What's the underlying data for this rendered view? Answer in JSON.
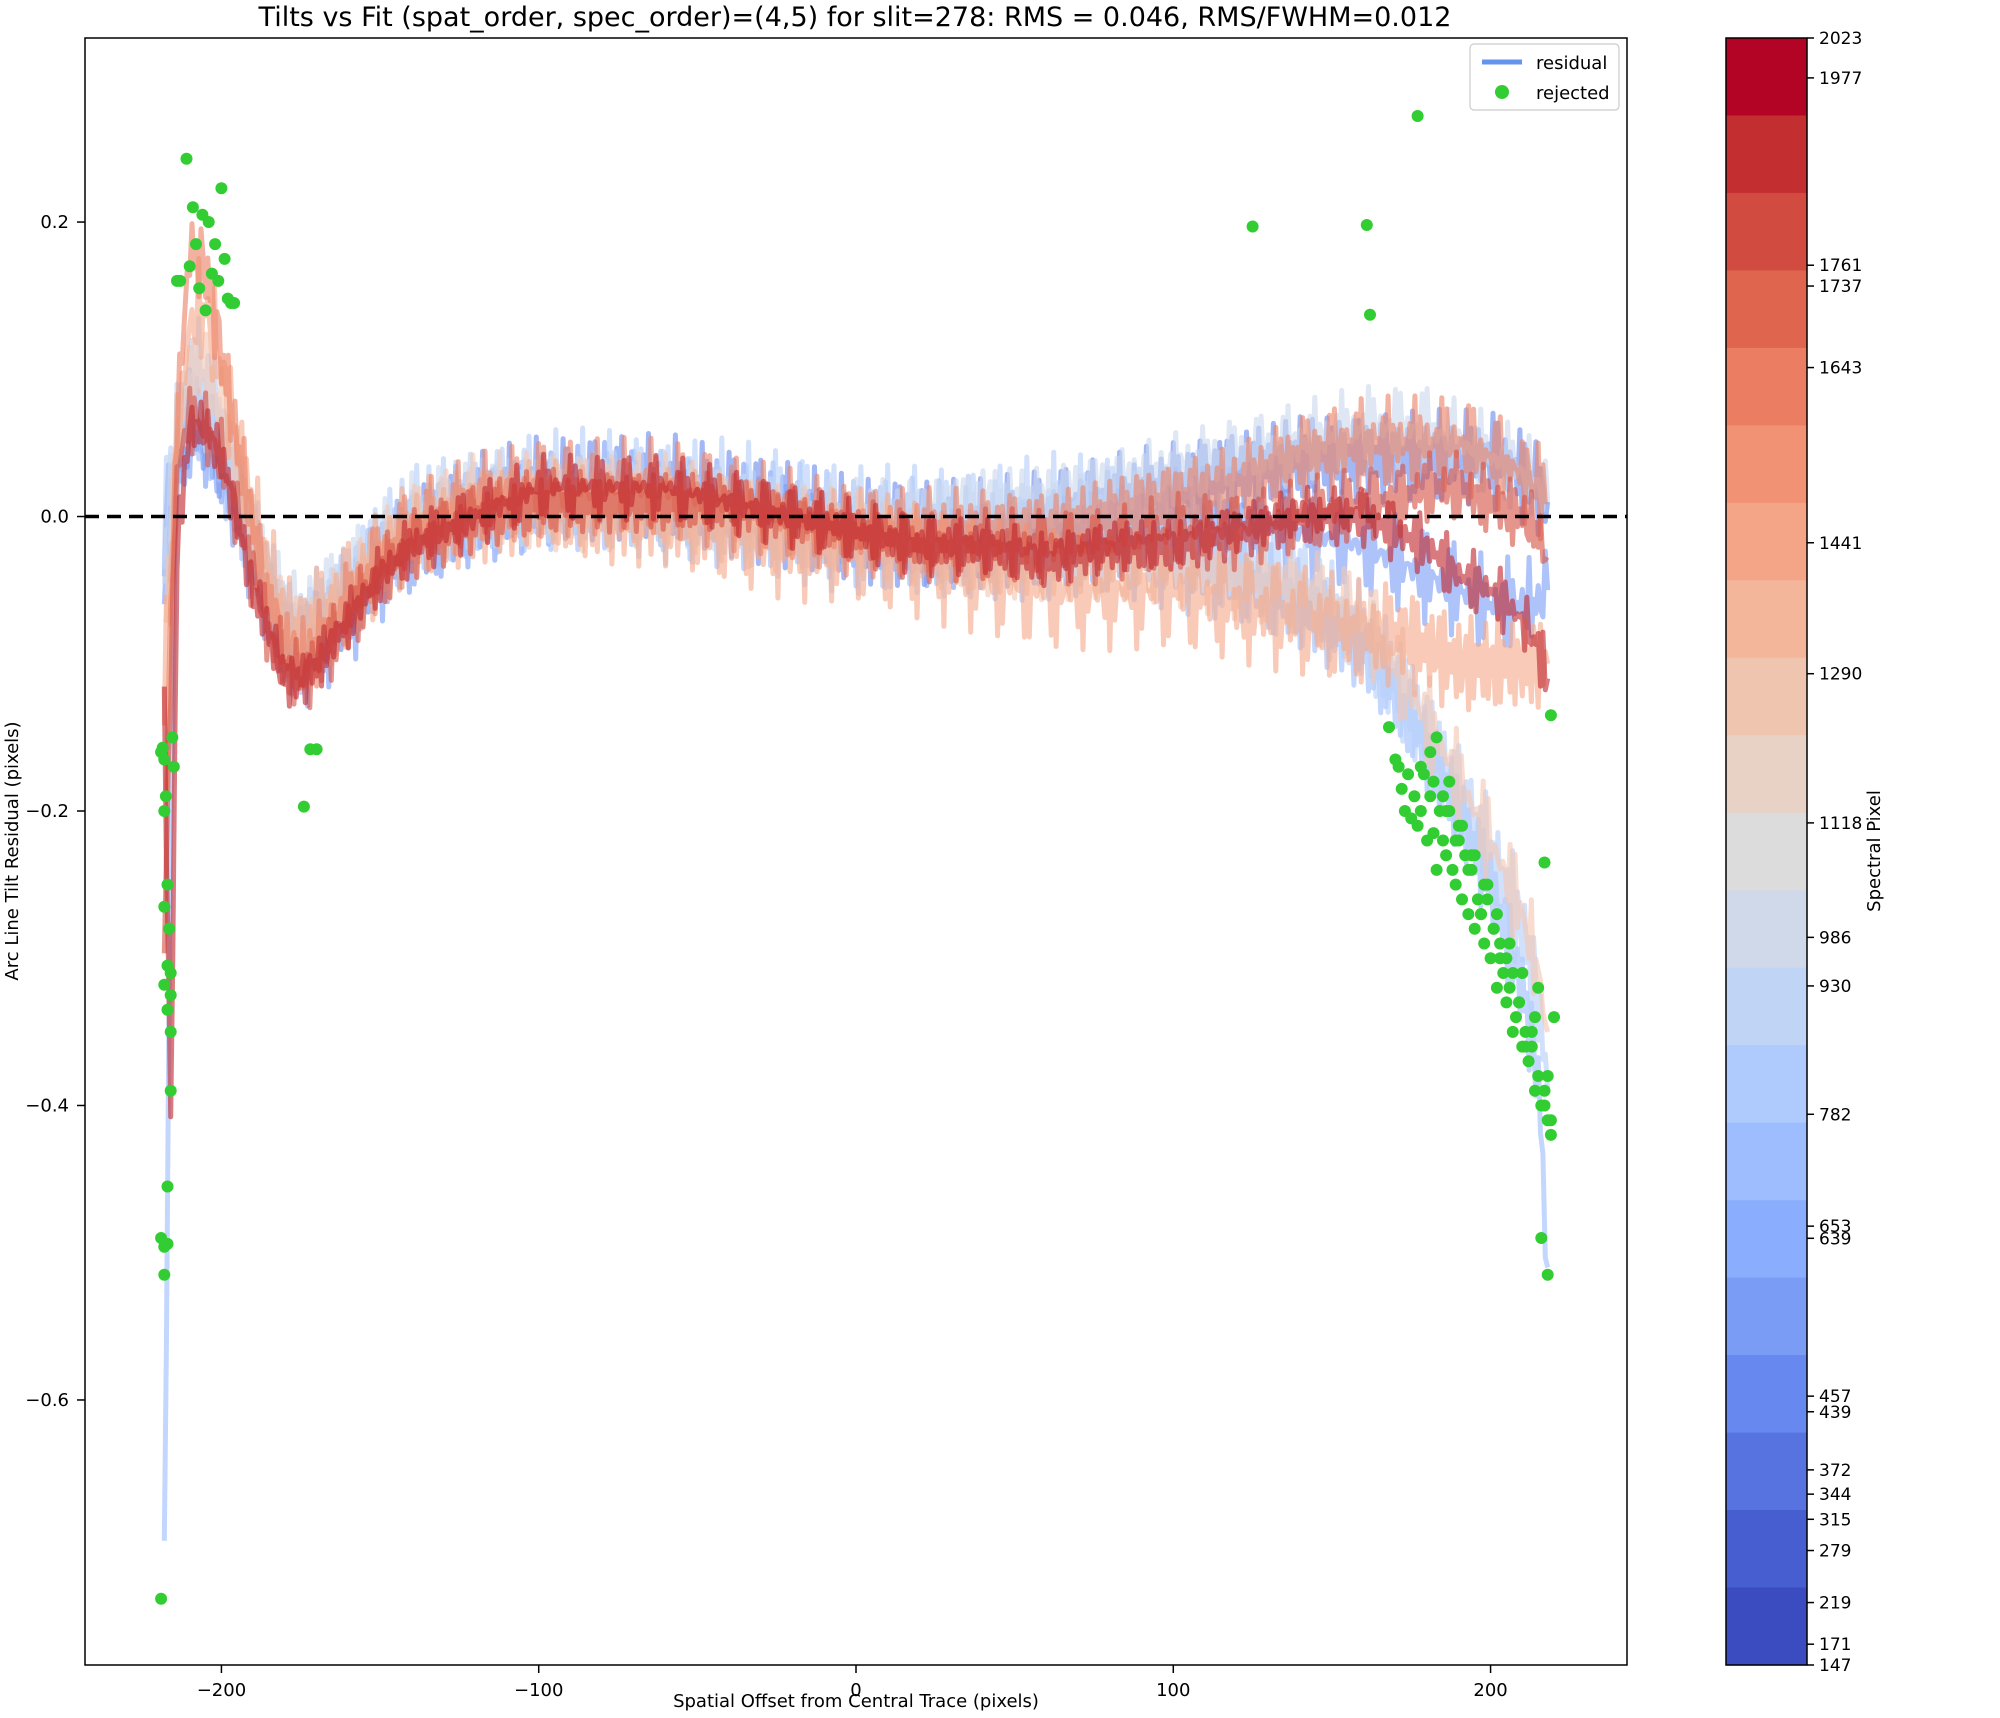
{
  "chart_data": {
    "type": "line",
    "title": "Tilts vs Fit (spat_order, spec_order)=(4,5) for slit=278: RMS = 0.046, RMS/FWHM=0.012",
    "xlabel": "Spatial Offset from Central Trace (pixels)",
    "ylabel": "Arc Line Tilt Residual (pixels)",
    "xlim": [
      -243,
      243
    ],
    "ylim": [
      -0.78,
      0.325
    ],
    "x_ticks": [
      -200,
      -100,
      0,
      100,
      200
    ],
    "x_tick_labels": [
      "−200",
      "−100",
      "0",
      "100",
      "200"
    ],
    "y_ticks": [
      0.2,
      0.0,
      -0.2,
      -0.4,
      -0.6
    ],
    "y_tick_labels": [
      "0.2",
      "0.0",
      "−0.2",
      "−0.4",
      "−0.6"
    ],
    "zero_line": {
      "y": 0.0,
      "style": "dashed",
      "color": "#000000"
    },
    "legend": {
      "placement": "top-right",
      "entries": [
        {
          "label": "residual",
          "type": "line",
          "color": "#6495ed"
        },
        {
          "label": "rejected",
          "type": "marker",
          "color": "#32cd32"
        }
      ]
    },
    "colorbar": {
      "label": "Spectral Pixel",
      "vmin": 147,
      "vmax": 2023,
      "ticks": [
        2023,
        1977,
        1761,
        1737,
        1643,
        1441,
        1290,
        1118,
        986,
        930,
        782,
        653,
        639,
        457,
        439,
        372,
        344,
        315,
        279,
        219,
        171,
        147
      ],
      "colors": [
        "#b40426",
        "#c32e31",
        "#d24b40",
        "#e0654f",
        "#eb7d62",
        "#f29274",
        "#f5a587",
        "#f3b69b",
        "#efc5b0",
        "#e8d2c6",
        "#dcdcdc",
        "#cfd9ea",
        "#c0d4f5",
        "#afcafc",
        "#9dbdfe",
        "#8badfd",
        "#7a9cf5",
        "#6788ee",
        "#5673e0",
        "#465ecf",
        "#3b4cc0"
      ]
    },
    "series": [
      {
        "spectral_pixel": 147,
        "color": "#6a8bef",
        "amp": 0.05,
        "phase": 0.9,
        "x": [
          -218,
          -216,
          -214,
          -210,
          -205,
          -200,
          -195,
          -190,
          -185,
          -180,
          -175,
          -170,
          -160,
          -150,
          -140,
          -120,
          -100,
          -80,
          -60,
          -40,
          -20,
          0,
          20,
          40,
          60,
          80,
          100,
          120,
          140,
          160,
          170,
          180,
          190,
          200,
          210,
          215,
          218
        ],
        "y": [
          -0.02,
          0.02,
          0.04,
          0.07,
          0.06,
          0.04,
          0.01,
          -0.02,
          -0.05,
          -0.08,
          -0.09,
          -0.08,
          -0.06,
          -0.03,
          -0.01,
          0.01,
          0.02,
          0.02,
          0.02,
          0.01,
          0.0,
          -0.01,
          -0.01,
          -0.01,
          0.0,
          0.01,
          0.02,
          0.03,
          0.04,
          0.04,
          0.04,
          0.04,
          0.04,
          0.04,
          0.03,
          0.02,
          0.01
        ]
      },
      {
        "spectral_pixel": 219,
        "color": "#7c9ef5",
        "amp": 0.045,
        "phase": 2.1,
        "x": [
          -218,
          -216,
          -214,
          -210,
          -205,
          -200,
          -195,
          -190,
          -185,
          -180,
          -175,
          -170,
          -160,
          -150,
          -140,
          -120,
          -100,
          -80,
          -60,
          -40,
          -20,
          0,
          20,
          40,
          60,
          80,
          100,
          120,
          140,
          160,
          170,
          180,
          190,
          200,
          210,
          215,
          218
        ],
        "y": [
          -0.05,
          0.0,
          0.03,
          0.06,
          0.05,
          0.03,
          0.0,
          -0.03,
          -0.06,
          -0.09,
          -0.1,
          -0.09,
          -0.07,
          -0.04,
          -0.02,
          0.0,
          0.01,
          0.02,
          0.01,
          0.01,
          0.0,
          -0.01,
          -0.02,
          -0.02,
          -0.02,
          -0.01,
          0.0,
          0.0,
          -0.01,
          -0.02,
          -0.03,
          -0.04,
          -0.05,
          -0.06,
          -0.06,
          -0.06,
          -0.05
        ]
      },
      {
        "spectral_pixel": 372,
        "color": "#9ebffe",
        "amp": 0.05,
        "phase": 3.3,
        "x": [
          -218,
          -216,
          -214,
          -210,
          -205,
          -200,
          -195,
          -190,
          -185,
          -180,
          -175,
          -170,
          -160,
          -150,
          -140,
          -120,
          -100,
          -80,
          -60,
          -40,
          -20,
          0,
          20,
          40,
          60,
          80,
          100,
          120,
          140,
          160,
          170,
          180,
          190,
          200,
          210,
          215,
          218
        ],
        "y": [
          -0.73,
          -0.2,
          0.02,
          0.06,
          0.06,
          0.04,
          0.01,
          -0.02,
          -0.06,
          -0.08,
          -0.09,
          -0.08,
          -0.05,
          -0.03,
          -0.01,
          0.0,
          0.01,
          0.01,
          0.01,
          0.0,
          0.0,
          -0.01,
          -0.01,
          -0.02,
          -0.02,
          -0.02,
          -0.03,
          -0.04,
          -0.06,
          -0.09,
          -0.12,
          -0.16,
          -0.2,
          -0.25,
          -0.32,
          -0.38,
          -0.51
        ]
      },
      {
        "spectral_pixel": 653,
        "color": "#b7cff9",
        "amp": 0.06,
        "phase": 4.7,
        "x": [
          -218,
          -216,
          -214,
          -210,
          -205,
          -200,
          -195,
          -190,
          -185,
          -180,
          -175,
          -170,
          -160,
          -150,
          -140,
          -120,
          -100,
          -80,
          -60,
          -40,
          -20,
          0,
          20,
          40,
          60,
          80,
          100,
          120,
          140,
          160,
          170,
          180,
          190,
          200,
          210,
          215,
          218
        ],
        "y": [
          -0.01,
          0.03,
          0.06,
          0.1,
          0.09,
          0.06,
          0.02,
          -0.02,
          -0.05,
          -0.07,
          -0.08,
          -0.07,
          -0.05,
          -0.02,
          0.0,
          0.01,
          0.02,
          0.02,
          0.01,
          0.01,
          0.0,
          -0.01,
          -0.01,
          -0.01,
          0.0,
          0.0,
          -0.01,
          -0.03,
          -0.05,
          -0.08,
          -0.11,
          -0.15,
          -0.19,
          -0.23,
          -0.28,
          -0.33,
          -0.39
        ]
      },
      {
        "spectral_pixel": 930,
        "color": "#cbd8ee",
        "amp": 0.04,
        "phase": 0.3,
        "x": [
          -218,
          -216,
          -214,
          -210,
          -205,
          -200,
          -195,
          -190,
          -185,
          -180,
          -175,
          -170,
          -160,
          -150,
          -140,
          -120,
          -100,
          -80,
          -60,
          -40,
          -20,
          0,
          20,
          40,
          60,
          80,
          100,
          120,
          140,
          160,
          170,
          180,
          190,
          200,
          210,
          215,
          218
        ],
        "y": [
          -0.03,
          0.02,
          0.05,
          0.08,
          0.07,
          0.05,
          0.02,
          -0.01,
          -0.04,
          -0.06,
          -0.07,
          -0.06,
          -0.04,
          -0.02,
          0.0,
          0.01,
          0.01,
          0.01,
          0.01,
          0.0,
          0.0,
          0.0,
          0.0,
          0.01,
          0.01,
          0.02,
          0.03,
          0.04,
          0.05,
          0.06,
          0.06,
          0.06,
          0.05,
          0.04,
          0.03,
          0.02,
          0.01
        ]
      },
      {
        "spectral_pixel": 1290,
        "color": "#f3c7b1",
        "amp": 0.045,
        "phase": 1.7,
        "x": [
          -218,
          -216,
          -214,
          -210,
          -205,
          -200,
          -195,
          -190,
          -185,
          -180,
          -175,
          -170,
          -160,
          -150,
          -140,
          -120,
          -100,
          -80,
          -60,
          -40,
          -20,
          0,
          20,
          40,
          60,
          80,
          100,
          120,
          140,
          160,
          170,
          180,
          190,
          200,
          210,
          215,
          218
        ],
        "y": [
          -0.08,
          -0.01,
          0.05,
          0.1,
          0.1,
          0.07,
          0.03,
          -0.01,
          -0.05,
          -0.08,
          -0.09,
          -0.08,
          -0.06,
          -0.03,
          -0.01,
          0.01,
          0.01,
          0.01,
          0.01,
          0.0,
          -0.01,
          -0.01,
          -0.02,
          -0.03,
          -0.03,
          -0.03,
          -0.03,
          -0.04,
          -0.05,
          -0.07,
          -0.1,
          -0.14,
          -0.18,
          -0.22,
          -0.27,
          -0.31,
          -0.35
        ]
      },
      {
        "spectral_pixel": 1441,
        "color": "#f4a98b",
        "amp": 0.055,
        "phase": 2.9,
        "x": [
          -218,
          -216,
          -214,
          -210,
          -205,
          -200,
          -195,
          -190,
          -185,
          -180,
          -175,
          -170,
          -160,
          -150,
          -140,
          -120,
          -100,
          -80,
          -60,
          -40,
          -20,
          0,
          20,
          40,
          60,
          80,
          100,
          120,
          140,
          160,
          170,
          180,
          190,
          200,
          210,
          215,
          218
        ],
        "y": [
          -0.12,
          -0.04,
          0.05,
          0.13,
          0.14,
          0.1,
          0.05,
          0.0,
          -0.04,
          -0.07,
          -0.08,
          -0.07,
          -0.05,
          -0.03,
          -0.01,
          0.0,
          0.01,
          0.0,
          0.0,
          -0.01,
          -0.02,
          -0.02,
          -0.03,
          -0.04,
          -0.05,
          -0.05,
          -0.05,
          -0.06,
          -0.07,
          -0.08,
          -0.08,
          -0.09,
          -0.1,
          -0.1,
          -0.1,
          -0.1,
          -0.1
        ]
      },
      {
        "spectral_pixel": 1643,
        "color": "#ec8368",
        "amp": 0.045,
        "phase": 4.1,
        "x": [
          -218,
          -216,
          -214,
          -210,
          -205,
          -200,
          -195,
          -190,
          -185,
          -180,
          -175,
          -170,
          -160,
          -150,
          -140,
          -120,
          -100,
          -80,
          -60,
          -40,
          -20,
          0,
          20,
          40,
          60,
          80,
          100,
          120,
          140,
          160,
          170,
          180,
          190,
          200,
          210,
          215,
          218
        ],
        "y": [
          -0.2,
          -0.08,
          0.07,
          0.18,
          0.17,
          0.11,
          0.05,
          -0.01,
          -0.06,
          -0.09,
          -0.1,
          -0.09,
          -0.06,
          -0.03,
          -0.01,
          0.01,
          0.02,
          0.02,
          0.02,
          0.01,
          0.0,
          -0.01,
          -0.01,
          -0.01,
          -0.01,
          0.0,
          0.01,
          0.02,
          0.04,
          0.05,
          0.05,
          0.05,
          0.05,
          0.04,
          0.03,
          0.02,
          0.01
        ]
      },
      {
        "spectral_pixel": 1761,
        "color": "#d75445",
        "amp": 0.035,
        "phase": 5.3,
        "x": [
          -218,
          -216,
          -214,
          -210,
          -205,
          -200,
          -195,
          -190,
          -185,
          -180,
          -175,
          -170,
          -160,
          -150,
          -140,
          -120,
          -100,
          -80,
          -60,
          -40,
          -20,
          0,
          20,
          40,
          60,
          80,
          100,
          120,
          140,
          160,
          170,
          180,
          190,
          200,
          210,
          215,
          218
        ],
        "y": [
          -0.3,
          -0.1,
          0.03,
          0.07,
          0.06,
          0.04,
          0.0,
          -0.04,
          -0.08,
          -0.1,
          -0.11,
          -0.1,
          -0.07,
          -0.04,
          -0.02,
          0.0,
          0.01,
          0.01,
          0.01,
          0.01,
          0.0,
          -0.01,
          -0.02,
          -0.02,
          -0.02,
          -0.02,
          -0.01,
          -0.01,
          0.0,
          0.01,
          0.01,
          0.02,
          0.02,
          0.01,
          0.0,
          -0.01,
          -0.03
        ]
      },
      {
        "spectral_pixel": 1977,
        "color": "#c0282f",
        "amp": 0.03,
        "phase": 0.6,
        "x": [
          -218,
          -216,
          -214,
          -210,
          -205,
          -200,
          -195,
          -190,
          -185,
          -180,
          -175,
          -170,
          -160,
          -150,
          -140,
          -120,
          -100,
          -80,
          -60,
          -40,
          -20,
          0,
          20,
          40,
          60,
          80,
          100,
          120,
          140,
          160,
          170,
          180,
          190,
          200,
          210,
          215,
          218
        ],
        "y": [
          -0.12,
          -0.42,
          -0.02,
          0.06,
          0.06,
          0.04,
          0.0,
          -0.05,
          -0.08,
          -0.11,
          -0.11,
          -0.1,
          -0.07,
          -0.04,
          -0.02,
          0.0,
          0.02,
          0.02,
          0.02,
          0.01,
          0.0,
          -0.01,
          -0.02,
          -0.02,
          -0.03,
          -0.02,
          -0.02,
          -0.01,
          0.0,
          0.0,
          -0.01,
          -0.02,
          -0.04,
          -0.05,
          -0.07,
          -0.09,
          -0.11
        ]
      }
    ],
    "rejected_points": {
      "x": [
        -219,
        -218.5,
        -218,
        -217.5,
        -217,
        -216.5,
        -216,
        -216,
        -215.5,
        -215,
        -214,
        -213,
        -211,
        -210,
        -209,
        -208,
        -207,
        -206,
        -205,
        -204,
        -203,
        -202,
        -201,
        -200,
        -199,
        -198,
        -197,
        -196,
        -174,
        -172,
        -170,
        -219,
        -218,
        -217,
        -218,
        -217,
        -216,
        -217,
        -218,
        -216,
        -217,
        -218,
        -219,
        -218,
        125,
        161,
        162,
        177,
        168,
        170,
        171,
        172,
        173,
        174,
        175,
        176,
        177,
        178,
        179,
        180,
        181,
        182,
        183,
        184,
        185,
        186,
        187,
        188,
        189,
        190,
        191,
        192,
        193,
        194,
        195,
        196,
        197,
        198,
        199,
        200,
        201,
        202,
        203,
        204,
        205,
        206,
        207,
        208,
        209,
        210,
        211,
        212,
        213,
        214,
        215,
        216,
        217,
        218,
        219,
        220,
        178,
        182,
        186,
        190,
        194,
        198,
        202,
        206,
        210,
        214,
        218,
        181,
        185,
        189,
        193,
        197,
        201,
        205,
        209,
        213,
        217,
        183,
        187,
        191,
        195,
        199,
        203,
        207,
        211,
        215,
        219,
        216,
        218,
        217,
        219
      ],
      "y": [
        -0.16,
        -0.157,
        -0.165,
        -0.19,
        -0.25,
        -0.28,
        -0.31,
        -0.35,
        -0.15,
        -0.17,
        0.16,
        0.16,
        0.243,
        0.17,
        0.21,
        0.185,
        0.155,
        0.205,
        0.14,
        0.2,
        0.165,
        0.185,
        0.16,
        0.223,
        0.175,
        0.148,
        0.145,
        0.145,
        -0.197,
        -0.158,
        -0.158,
        -0.49,
        -0.496,
        -0.494,
        -0.515,
        -0.455,
        -0.39,
        -0.335,
        -0.318,
        -0.325,
        -0.305,
        -0.265,
        -0.735,
        -0.2,
        0.197,
        0.198,
        0.137,
        0.272,
        -0.143,
        -0.165,
        -0.17,
        -0.185,
        -0.2,
        -0.175,
        -0.205,
        -0.19,
        -0.21,
        -0.2,
        -0.175,
        -0.22,
        -0.19,
        -0.215,
        -0.24,
        -0.2,
        -0.22,
        -0.23,
        -0.2,
        -0.24,
        -0.25,
        -0.22,
        -0.26,
        -0.23,
        -0.27,
        -0.24,
        -0.28,
        -0.26,
        -0.27,
        -0.29,
        -0.26,
        -0.3,
        -0.28,
        -0.32,
        -0.3,
        -0.31,
        -0.33,
        -0.32,
        -0.35,
        -0.34,
        -0.33,
        -0.36,
        -0.35,
        -0.37,
        -0.36,
        -0.39,
        -0.38,
        -0.4,
        -0.39,
        -0.41,
        -0.42,
        -0.34,
        -0.17,
        -0.18,
        -0.2,
        -0.21,
        -0.23,
        -0.25,
        -0.27,
        -0.29,
        -0.31,
        -0.34,
        -0.38,
        -0.16,
        -0.19,
        -0.22,
        -0.24,
        -0.27,
        -0.28,
        -0.3,
        -0.33,
        -0.35,
        -0.4,
        -0.15,
        -0.18,
        -0.21,
        -0.23,
        -0.25,
        -0.29,
        -0.31,
        -0.36,
        -0.32,
        -0.41,
        -0.49,
        -0.515,
        -0.235,
        -0.135
      ]
    }
  }
}
